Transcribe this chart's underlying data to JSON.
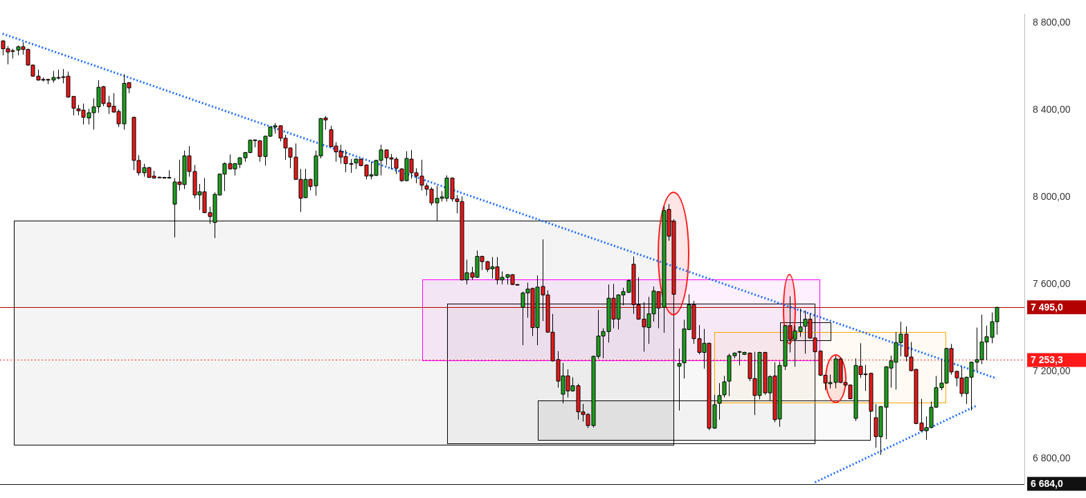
{
  "chart_data": {
    "type": "candlestick",
    "categories": [
      null,
      null,
      null,
      null,
      null,
      null,
      null,
      null,
      null,
      null,
      null,
      null,
      null,
      null,
      null,
      null,
      null,
      null,
      null,
      null,
      null,
      null,
      null,
      null,
      null,
      null,
      null,
      null,
      null,
      null,
      null,
      null,
      null,
      null,
      null,
      null,
      null,
      null,
      null,
      null,
      null,
      null,
      null,
      null,
      null,
      null,
      null,
      null,
      null,
      null,
      null,
      null,
      null,
      null,
      null,
      null,
      null,
      null,
      null,
      null,
      null,
      null,
      null,
      null,
      null,
      null,
      null,
      null,
      null,
      null,
      null,
      null,
      null,
      null,
      null,
      null,
      null,
      null,
      null,
      null,
      null,
      null,
      null,
      null,
      null,
      null,
      null,
      null,
      null,
      null,
      null,
      null,
      null,
      null,
      null,
      null,
      null,
      null,
      null,
      null,
      null,
      null,
      null,
      null,
      null,
      null,
      null,
      null,
      null,
      null,
      null,
      null,
      null,
      null,
      null,
      null,
      null,
      null,
      null,
      null,
      null,
      null,
      null,
      null,
      null,
      null,
      null,
      null,
      null,
      null,
      null,
      null,
      null,
      null,
      null,
      null,
      null,
      null,
      null,
      null,
      null,
      null,
      null,
      null,
      null,
      null,
      null,
      null,
      null,
      null,
      null,
      null,
      null,
      null,
      null,
      null,
      null,
      null,
      null,
      null,
      null,
      null,
      null,
      null,
      null,
      null,
      null,
      null,
      null,
      null,
      null,
      null,
      null,
      null,
      null,
      null,
      null,
      null,
      null,
      null,
      null,
      null,
      null,
      null,
      null,
      null,
      null,
      null,
      null,
      null,
      null,
      null,
      null,
      null,
      null,
      null,
      null,
      null,
      null,
      null,
      null,
      null,
      null
    ],
    "ohlc": [
      [
        8719,
        8722,
        8653,
        8683
      ],
      [
        8683,
        8695,
        8611,
        8668
      ],
      [
        8674,
        8683,
        8638,
        8672
      ],
      [
        8677,
        8698,
        8653,
        8692
      ],
      [
        8692,
        8713,
        8656,
        8680
      ],
      [
        8680,
        8683,
        8605,
        8608
      ],
      [
        8608,
        8610,
        8554,
        8557
      ],
      [
        8557,
        8587,
        8536,
        8539
      ],
      [
        8542,
        8551,
        8533,
        8540
      ],
      [
        8542,
        8545,
        8521,
        8539
      ],
      [
        8539,
        8581,
        8527,
        8551
      ],
      [
        8551,
        8587,
        8542,
        8550
      ],
      [
        8554,
        8590,
        8524,
        8553
      ],
      [
        8557,
        8578,
        8458,
        8461
      ],
      [
        8464,
        8466,
        8377,
        8410
      ],
      [
        8407,
        8425,
        8377,
        8398
      ],
      [
        8401,
        8431,
        8335,
        8368
      ],
      [
        8365,
        8407,
        8335,
        8389
      ],
      [
        8389,
        8455,
        8311,
        8416
      ],
      [
        8416,
        8539,
        8389,
        8506
      ],
      [
        8509,
        8512,
        8419,
        8431
      ],
      [
        8434,
        8467,
        8383,
        8416
      ],
      [
        8419,
        8479,
        8389,
        8392
      ],
      [
        8395,
        8404,
        8323,
        8338
      ],
      [
        8338,
        8566,
        8311,
        8524
      ],
      [
        8527,
        8530,
        8479,
        8503
      ],
      [
        8368,
        8371,
        8125,
        8170
      ],
      [
        8170,
        8194,
        8101,
        8113
      ],
      [
        8113,
        8155,
        8095,
        8137
      ],
      [
        8137,
        8140,
        8089,
        8092
      ],
      [
        8098,
        8122,
        8086,
        8089
      ],
      [
        8093,
        8095,
        8089,
        8092
      ],
      [
        8092,
        8094,
        8089,
        8091
      ],
      [
        8092,
        8125,
        8089,
        8091
      ],
      [
        7969,
        8089,
        7816,
        8071
      ],
      [
        8071,
        8173,
        8032,
        8059
      ],
      [
        8059,
        8215,
        8038,
        8191
      ],
      [
        8191,
        8236,
        8095,
        8119
      ],
      [
        8119,
        8149,
        7996,
        8011
      ],
      [
        8011,
        8062,
        7942,
        8026
      ],
      [
        8026,
        8089,
        7927,
        7930
      ],
      [
        7930,
        7957,
        7879,
        7912
      ],
      [
        7885,
        8023,
        7813,
        8014
      ],
      [
        8011,
        8110,
        8008,
        8107
      ],
      [
        8107,
        8161,
        8029,
        8155
      ],
      [
        8155,
        8197,
        8128,
        8131
      ],
      [
        8131,
        8158,
        8101,
        8155
      ],
      [
        8152,
        8185,
        8134,
        8182
      ],
      [
        8182,
        8209,
        8164,
        8206
      ],
      [
        8206,
        8266,
        8203,
        8263
      ],
      [
        8263,
        8266,
        8230,
        8264
      ],
      [
        8260,
        8263,
        8164,
        8188
      ],
      [
        8188,
        8284,
        8146,
        8281
      ],
      [
        8281,
        8326,
        8278,
        8323
      ],
      [
        8323,
        8341,
        8293,
        8329
      ],
      [
        8329,
        8332,
        8257,
        8272
      ],
      [
        8272,
        8287,
        8173,
        8227
      ],
      [
        8227,
        8230,
        8134,
        8185
      ],
      [
        8185,
        8248,
        8080,
        8083
      ],
      [
        8083,
        8131,
        7933,
        7996
      ],
      [
        7999,
        8131,
        7996,
        8083
      ],
      [
        8083,
        8086,
        8032,
        8050
      ],
      [
        8053,
        8215,
        8008,
        8191
      ],
      [
        8191,
        8365,
        8179,
        8362
      ],
      [
        8365,
        8374,
        8311,
        8356
      ],
      [
        8311,
        8329,
        8230,
        8233
      ],
      [
        8236,
        8254,
        8164,
        8209
      ],
      [
        8212,
        8242,
        8155,
        8185
      ],
      [
        8188,
        8218,
        8116,
        8155
      ],
      [
        8155,
        8176,
        8113,
        8154
      ],
      [
        8158,
        8179,
        8131,
        8176
      ],
      [
        8176,
        8179,
        8143,
        8146
      ],
      [
        8149,
        8152,
        8083,
        8098
      ],
      [
        8098,
        8164,
        8083,
        8104
      ],
      [
        8101,
        8173,
        8098,
        8170
      ],
      [
        8170,
        8242,
        8101,
        8218
      ],
      [
        8218,
        8221,
        8149,
        8182
      ],
      [
        8182,
        8200,
        8131,
        8176
      ],
      [
        8176,
        8185,
        8107,
        8134
      ],
      [
        8131,
        8134,
        8071,
        8077
      ],
      [
        8077,
        8212,
        8074,
        8179
      ],
      [
        8176,
        8218,
        8086,
        8113
      ],
      [
        8113,
        8134,
        8065,
        8098
      ],
      [
        8098,
        8173,
        8032,
        8056
      ],
      [
        8053,
        8065,
        8008,
        8038
      ],
      [
        8038,
        8047,
        7963,
        7975
      ],
      [
        7975,
        8053,
        7891,
        7996
      ],
      [
        7996,
        8029,
        7981,
        8002
      ],
      [
        7996,
        8101,
        7981,
        8089
      ],
      [
        8089,
        8092,
        7981,
        7993
      ],
      [
        7993,
        8011,
        7927,
        7981
      ],
      [
        7981,
        8005,
        7618,
        7621
      ],
      [
        7621,
        7714,
        7600,
        7654
      ],
      [
        7654,
        7681,
        7621,
        7633
      ],
      [
        7633,
        7756,
        7630,
        7729
      ],
      [
        7729,
        7732,
        7666,
        7705
      ],
      [
        7705,
        7708,
        7657,
        7669
      ],
      [
        7672,
        7726,
        7627,
        7681
      ],
      [
        7681,
        7726,
        7600,
        7621
      ],
      [
        7621,
        7660,
        7600,
        7633
      ],
      [
        7633,
        7648,
        7600,
        7645
      ],
      [
        7645,
        7648,
        7597,
        7600
      ],
      [
        7600,
        7602,
        7597,
        7599
      ],
      [
        7495,
        7567,
        7321,
        7561
      ],
      [
        7561,
        7609,
        7447,
        7579
      ],
      [
        7582,
        7585,
        7363,
        7402
      ],
      [
        7402,
        7642,
        7321,
        7588
      ],
      [
        7591,
        7807,
        7432,
        7552
      ],
      [
        7552,
        7573,
        7378,
        7381
      ],
      [
        7381,
        7465,
        7246,
        7249
      ],
      [
        7255,
        7294,
        7126,
        7156
      ],
      [
        7096,
        7240,
        7054,
        7180
      ],
      [
        7180,
        7210,
        7081,
        7111
      ],
      [
        7111,
        7174,
        7108,
        7135
      ],
      [
        7135,
        7144,
        6979,
        7015
      ],
      [
        7015,
        7051,
        6970,
        7003
      ],
      [
        7003,
        7009,
        6940,
        6952
      ],
      [
        6952,
        7273,
        6943,
        7270
      ],
      [
        7270,
        7483,
        7258,
        7363
      ],
      [
        7363,
        7399,
        7261,
        7384
      ],
      [
        7384,
        7600,
        7333,
        7537
      ],
      [
        7537,
        7603,
        7399,
        7441
      ],
      [
        7441,
        7555,
        7393,
        7552
      ],
      [
        7552,
        7585,
        7504,
        7567
      ],
      [
        7564,
        7624,
        7561,
        7618
      ],
      [
        7693,
        7729,
        7465,
        7507
      ],
      [
        7507,
        7633,
        7438,
        7441
      ],
      [
        7441,
        7519,
        7291,
        7405
      ],
      [
        7402,
        7543,
        7327,
        7465
      ],
      [
        7465,
        7591,
        7429,
        7570
      ],
      [
        7567,
        7570,
        7399,
        7492
      ],
      [
        7495,
        7960,
        7378,
        7939
      ],
      [
        7945,
        7969,
        7801,
        7822
      ],
      [
        7891,
        7900,
        7477,
        7555
      ],
      [
        7225,
        7306,
        7021,
        7237
      ],
      [
        7240,
        7438,
        7168,
        7396
      ],
      [
        7393,
        7555,
        7390,
        7507
      ],
      [
        7507,
        7525,
        7327,
        7351
      ],
      [
        7351,
        7414,
        7279,
        7288
      ],
      [
        7288,
        7396,
        7213,
        7330
      ],
      [
        7330,
        7333,
        6931,
        6940
      ],
      [
        6940,
        7093,
        6937,
        7048
      ],
      [
        7054,
        7147,
        6979,
        7090
      ],
      [
        7093,
        7180,
        7081,
        7153
      ],
      [
        7156,
        7282,
        7087,
        7273
      ],
      [
        7273,
        7288,
        7261,
        7285
      ],
      [
        7291,
        7294,
        7228,
        7292
      ],
      [
        7279,
        7291,
        7276,
        7288
      ],
      [
        7285,
        7288,
        7156,
        7168
      ],
      [
        7168,
        7291,
        7000,
        7090
      ],
      [
        7090,
        7291,
        7072,
        7288
      ],
      [
        7288,
        7291,
        7093,
        7102
      ],
      [
        7102,
        7183,
        7066,
        7177
      ],
      [
        7180,
        7243,
        6967,
        6979
      ],
      [
        6982,
        7246,
        6946,
        7228
      ],
      [
        7225,
        7414,
        7207,
        7411
      ],
      [
        7411,
        7546,
        7288,
        7348
      ],
      [
        7348,
        7411,
        7222,
        7387
      ],
      [
        7384,
        7489,
        7360,
        7405
      ],
      [
        7408,
        7480,
        7282,
        7441
      ],
      [
        7441,
        7468,
        7351,
        7354
      ],
      [
        7354,
        7360,
        7288,
        7291
      ],
      [
        7294,
        7297,
        7180,
        7183
      ],
      [
        7183,
        7186,
        7114,
        7147
      ],
      [
        7144,
        7186,
        7123,
        7150
      ],
      [
        7150,
        7273,
        7123,
        7258
      ],
      [
        7258,
        7264,
        7147,
        7150
      ],
      [
        7150,
        7153,
        7132,
        7138
      ],
      [
        7138,
        7141,
        7072,
        7075
      ],
      [
        6985,
        7261,
        6973,
        7228
      ],
      [
        7225,
        7330,
        7171,
        7186
      ],
      [
        7189,
        7231,
        7111,
        7188
      ],
      [
        7192,
        7195,
        7015,
        7018
      ],
      [
        6988,
        7051,
        6850,
        6901
      ],
      [
        6901,
        7042,
        6817,
        7039
      ],
      [
        7036,
        7225,
        6889,
        7222
      ],
      [
        7216,
        7273,
        7126,
        7249
      ],
      [
        7243,
        7381,
        7117,
        7333
      ],
      [
        7333,
        7429,
        7270,
        7372
      ],
      [
        7372,
        7408,
        7246,
        7270
      ],
      [
        7267,
        7336,
        7201,
        7204
      ],
      [
        7210,
        7213,
        6958,
        6961
      ],
      [
        6964,
        7075,
        6925,
        6928
      ],
      [
        6928,
        6994,
        6886,
        6943
      ],
      [
        6943,
        7063,
        6940,
        7036
      ],
      [
        7036,
        7180,
        7033,
        7126
      ],
      [
        7126,
        7255,
        7114,
        7147
      ],
      [
        7147,
        7309,
        7144,
        7306
      ],
      [
        7306,
        7327,
        7186,
        7198
      ],
      [
        7201,
        7204,
        7132,
        7171
      ],
      [
        7171,
        7222,
        7084,
        7099
      ],
      [
        7099,
        7177,
        7051,
        7174
      ],
      [
        7174,
        7246,
        7021,
        7243
      ],
      [
        7243,
        7402,
        7201,
        7255
      ],
      [
        7255,
        7462,
        7234,
        7336
      ],
      [
        7336,
        7411,
        7252,
        7360
      ],
      [
        7357,
        7471,
        7330,
        7429
      ],
      [
        7429,
        7498,
        7369,
        7495
      ],
      null,
      null,
      null,
      null,
      null
    ],
    "colors": [
      "#e31a1a",
      "#e31a1a",
      "#e31a1a",
      "#1f9d1f",
      "#e31a1a",
      "#e31a1a",
      "#e31a1a",
      "#e31a1a",
      "#e31a1a",
      "#e31a1a",
      "#1f9d1f",
      "#e31a1a",
      "#e31a1a",
      "#e31a1a",
      "#e31a1a",
      "#e31a1a",
      "#e31a1a",
      "#1f9d1f",
      "#1f9d1f",
      "#1f9d1f",
      "#e31a1a",
      "#e31a1a",
      "#e31a1a",
      "#e31a1a",
      "#1f9d1f",
      "#e31a1a",
      "#e31a1a",
      "#e31a1a",
      "#1f9d1f",
      "#e31a1a",
      "#e31a1a",
      "#e31a1a",
      "#e31a1a",
      "#e31a1a",
      "#1f9d1f",
      "#e31a1a",
      "#1f9d1f",
      "#e31a1a",
      "#e31a1a",
      "#1f9d1f",
      "#e31a1a",
      "#e31a1a",
      "#1f9d1f",
      "#1f9d1f",
      "#1f9d1f",
      "#e31a1a",
      "#1f9d1f",
      "#1f9d1f",
      "#1f9d1f",
      "#1f9d1f",
      "#1f9d1f",
      "#e31a1a",
      "#1f9d1f",
      "#1f9d1f",
      "#1f9d1f",
      "#e31a1a",
      "#e31a1a",
      "#e31a1a",
      "#e31a1a",
      "#e31a1a",
      "#1f9d1f",
      "#e31a1a",
      "#1f9d1f",
      "#1f9d1f",
      "#e31a1a",
      "#e31a1a",
      "#e31a1a",
      "#e31a1a",
      "#e31a1a",
      "#e31a1a",
      "#1f9d1f",
      "#e31a1a",
      "#e31a1a",
      "#1f9d1f",
      "#1f9d1f",
      "#1f9d1f",
      "#e31a1a",
      "#e31a1a",
      "#e31a1a",
      "#e31a1a",
      "#1f9d1f",
      "#e31a1a",
      "#e31a1a",
      "#e31a1a",
      "#e31a1a",
      "#e31a1a",
      "#1f9d1f",
      "#1f9d1f",
      "#1f9d1f",
      "#e31a1a",
      "#e31a1a",
      "#e31a1a",
      "#1f9d1f",
      "#e31a1a",
      "#1f9d1f",
      "#e31a1a",
      "#e31a1a",
      "#1f9d1f",
      "#e31a1a",
      "#1f9d1f",
      "#1f9d1f",
      "#e31a1a",
      "#e31a1a",
      "#1f9d1f",
      "#1f9d1f",
      "#e31a1a",
      "#1f9d1f",
      "#e31a1a",
      "#e31a1a",
      "#e31a1a",
      "#e31a1a",
      "#1f9d1f",
      "#e31a1a",
      "#1f9d1f",
      "#e31a1a",
      "#e31a1a",
      "#e31a1a",
      "#1f9d1f",
      "#1f9d1f",
      "#1f9d1f",
      "#1f9d1f",
      "#e31a1a",
      "#1f9d1f",
      "#1f9d1f",
      "#1f9d1f",
      "#e31a1a",
      "#e31a1a",
      "#e31a1a",
      "#1f9d1f",
      "#1f9d1f",
      "#e31a1a",
      "#1f9d1f",
      "#e31a1a",
      "#e31a1a",
      "#1f9d1f",
      "#1f9d1f",
      "#1f9d1f",
      "#e31a1a",
      "#e31a1a",
      "#1f9d1f",
      "#e31a1a",
      "#1f9d1f",
      "#1f9d1f",
      "#1f9d1f",
      "#1f9d1f",
      "#1f9d1f",
      "#1f9d1f",
      "#1f9d1f",
      "#e31a1a",
      "#e31a1a",
      "#1f9d1f",
      "#e31a1a",
      "#1f9d1f",
      "#e31a1a",
      "#1f9d1f",
      "#1f9d1f",
      "#e31a1a",
      "#1f9d1f",
      "#1f9d1f",
      "#1f9d1f",
      "#e31a1a",
      "#e31a1a",
      "#e31a1a",
      "#e31a1a",
      "#1f9d1f",
      "#1f9d1f",
      "#e31a1a",
      "#e31a1a",
      "#e31a1a",
      "#1f9d1f",
      "#e31a1a",
      "#e31a1a",
      "#e31a1a",
      "#e31a1a",
      "#1f9d1f",
      "#1f9d1f",
      "#1f9d1f",
      "#1f9d1f",
      "#1f9d1f",
      "#e31a1a",
      "#e31a1a",
      "#e31a1a",
      "#e31a1a",
      "#1f9d1f",
      "#1f9d1f",
      "#1f9d1f",
      "#1f9d1f",
      "#1f9d1f",
      "#e31a1a",
      "#e31a1a",
      "#e31a1a",
      "#1f9d1f",
      "#1f9d1f",
      "#1f9d1f",
      "#1f9d1f",
      "#1f9d1f",
      "#1f9d1f",
      "#1f9d1f",
      null,
      null,
      null,
      null,
      null
    ],
    "series": [
      {
        "type": "line",
        "color": "#1a6bff",
        "values": [
          8752,
          null,
          null,
          null,
          null,
          null,
          null,
          null,
          null,
          null,
          null,
          null,
          null,
          null,
          null,
          null,
          null,
          null,
          null,
          null,
          null,
          null,
          null,
          null,
          null,
          null,
          null,
          null,
          null,
          null,
          null,
          null,
          null,
          null,
          null,
          null,
          null,
          null,
          null,
          null,
          null,
          null,
          null,
          null,
          null,
          null,
          null,
          null,
          null,
          null,
          null,
          null,
          null,
          null,
          null,
          null,
          null,
          null,
          null,
          null,
          null,
          null,
          null,
          null,
          null,
          null,
          null,
          null,
          null,
          null,
          null,
          null,
          null,
          null,
          null,
          null,
          null,
          null,
          null,
          null,
          null,
          null,
          null,
          null,
          null,
          null,
          null,
          null,
          null,
          null,
          null,
          null,
          null,
          null,
          null,
          null,
          null,
          null,
          null,
          null,
          null,
          null,
          null,
          null,
          null,
          null,
          null,
          null,
          null,
          null,
          null,
          null,
          null,
          null,
          null,
          null,
          null,
          null,
          null,
          null,
          null,
          null,
          null,
          null,
          null,
          null,
          null,
          null,
          null,
          null,
          null,
          null,
          null,
          null,
          null,
          null,
          null,
          null,
          null,
          null,
          null,
          null,
          null,
          null,
          null,
          null,
          null,
          null,
          null,
          null,
          null,
          null,
          null,
          null,
          null,
          null,
          null,
          null,
          null,
          null,
          null,
          null,
          null,
          null,
          null,
          null,
          null,
          null,
          null,
          null,
          null,
          null,
          null,
          null,
          null,
          null,
          null,
          null,
          null,
          null,
          null,
          null,
          null,
          null,
          null,
          null,
          null,
          null,
          null,
          null,
          null,
          null,
          null,
          null,
          null,
          null,
          null,
          7168,
          null,
          null,
          null,
          null,
          null
        ]
      },
      {
        "type": "line",
        "color": "#1a6bff",
        "values": [
          null,
          null,
          null,
          null,
          null,
          null,
          null,
          null,
          null,
          null,
          null,
          null,
          null,
          null,
          null,
          null,
          null,
          null,
          null,
          null,
          null,
          null,
          null,
          null,
          null,
          null,
          null,
          null,
          null,
          null,
          null,
          null,
          null,
          null,
          null,
          null,
          null,
          null,
          null,
          null,
          null,
          null,
          null,
          null,
          null,
          null,
          null,
          null,
          null,
          null,
          null,
          null,
          null,
          null,
          null,
          null,
          null,
          null,
          null,
          null,
          null,
          null,
          null,
          null,
          null,
          null,
          null,
          null,
          null,
          null,
          null,
          null,
          null,
          null,
          null,
          null,
          null,
          null,
          null,
          null,
          null,
          null,
          null,
          null,
          null,
          null,
          null,
          null,
          null,
          null,
          null,
          null,
          null,
          null,
          null,
          null,
          null,
          null,
          null,
          null,
          null,
          null,
          null,
          null,
          null,
          null,
          null,
          null,
          null,
          null,
          null,
          null,
          null,
          null,
          null,
          null,
          null,
          null,
          null,
          null,
          null,
          null,
          null,
          null,
          null,
          null,
          null,
          null,
          null,
          null,
          null,
          null,
          null,
          null,
          null,
          null,
          null,
          null,
          null,
          null,
          null,
          null,
          null,
          null,
          null,
          null,
          null,
          null,
          null,
          null,
          null,
          null,
          null,
          null,
          null,
          null,
          null,
          null,
          null,
          null,
          null,
          6691,
          null,
          null,
          null,
          null,
          null,
          null,
          null,
          null,
          null,
          null,
          null,
          null,
          null,
          null,
          null,
          null,
          null,
          null,
          null,
          null,
          null,
          null,
          null,
          null,
          null,
          null,
          null,
          null,
          null,
          null,
          null,
          7043,
          null,
          null,
          null,
          null,
          null,
          null,
          null,
          null,
          null
        ]
      }
    ],
    "line_style": "dotted",
    "ylim": [
      6684,
      8842
    ],
    "yticks": [
      {
        "value": 8800,
        "label": "8 800,00"
      },
      {
        "value": 8400,
        "label": "8 400,00"
      },
      {
        "value": 8000,
        "label": "8 000,00"
      },
      {
        "value": 7600,
        "label": "7 600,00"
      },
      {
        "value": 7200,
        "label": "7 200,00"
      },
      {
        "value": 6800,
        "label": "6 800,00"
      }
    ],
    "tick_labels": "y",
    "ref_lines": [
      {
        "axis": "y",
        "value": 7495,
        "label": "7 495,0",
        "color": "#b30000",
        "line_style": "solid"
      },
      {
        "axis": "y",
        "value": 7253.3,
        "label": "7 253,3",
        "color": "#ff1a1a",
        "line_style": "dotted"
      },
      {
        "axis": "y",
        "value": 6684,
        "label": "6 684,0",
        "color": "#111111",
        "line_style": "solid"
      }
    ],
    "legend": false
  }
}
